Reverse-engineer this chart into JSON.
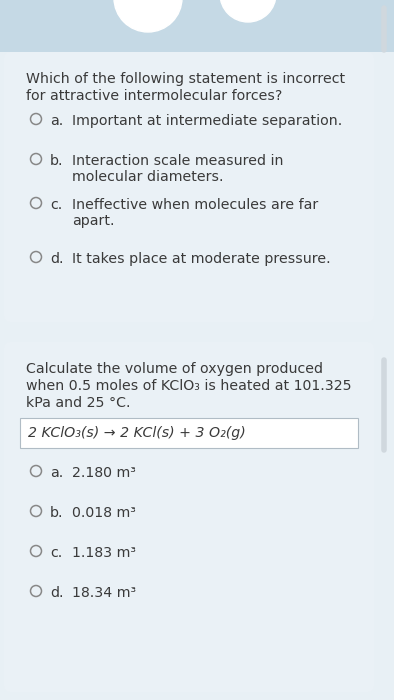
{
  "page_bg": "#e8f0f5",
  "card_bg": "#eaf1f6",
  "top_bg": "#c5d9e5",
  "white": "#ffffff",
  "text_color": "#3a3a3a",
  "circle_edge": "#888888",
  "scrollbar_bg": "#d0d8de",
  "scrollbar_handle": "#a0aaB0",
  "eq_box_bg": "#ffffff",
  "eq_box_edge": "#b0bcc5",
  "font_size_q": 10.2,
  "font_size_opt": 10.2,
  "font_size_eq": 10.2,
  "q1_title_line1": "Which of the following statement is incorrect",
  "q1_title_line2": "for attractive intermolecular forces?",
  "q1_options": [
    [
      "a.",
      "Important at intermediate separation."
    ],
    [
      "b.",
      "Interaction scale measured in\nmolecular diameters."
    ],
    [
      "c.",
      "Ineffective when molecules are far\napart."
    ],
    [
      "d.",
      "It takes place at moderate pressure."
    ]
  ],
  "q2_title_line1": "Calculate the volume of oxygen produced",
  "q2_title_line2": "when 0.5 moles of KClO₃ is heated at 101.325",
  "q2_title_line3": "kPa and 25 °C.",
  "q2_equation": "2 KClO₃(s) → 2 KCl(s) + 3 O₂(g)",
  "q2_options": [
    [
      "a.",
      "2.180 m³"
    ],
    [
      "b.",
      "0.018 m³"
    ],
    [
      "c.",
      "1.183 m³"
    ],
    [
      "d.",
      "18.34 m³"
    ]
  ]
}
